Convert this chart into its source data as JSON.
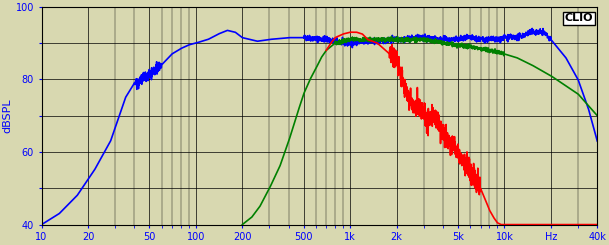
{
  "ylabel": "dBSPL",
  "clio_label": "CLIO",
  "xlim": [
    10,
    40000
  ],
  "ylim": [
    40,
    100
  ],
  "yticks": [
    40,
    50,
    60,
    70,
    80,
    90,
    100
  ],
  "ytick_labels": [
    "40",
    "",
    "60",
    "",
    "80",
    "",
    "100"
  ],
  "xtick_labels": [
    "10",
    "20",
    "50",
    "100",
    "200",
    "500",
    "1k",
    "2k",
    "5k",
    "10k",
    "Hz",
    "40k"
  ],
  "xtick_values": [
    10,
    20,
    50,
    100,
    200,
    500,
    1000,
    2000,
    5000,
    10000,
    20000,
    40000
  ],
  "bg_color": "#d8d8b0",
  "grid_color": "#000000",
  "line_blue": "#0000ff",
  "line_red": "#ff0000",
  "line_green": "#008000",
  "line_width": 1.2
}
